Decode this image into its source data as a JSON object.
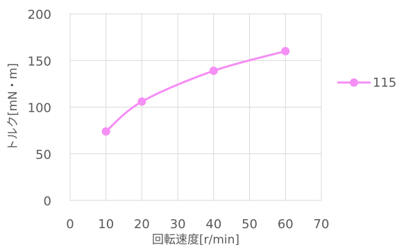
{
  "chart_data": {
    "type": "scatter",
    "xlabel": "回転速度[r/min]",
    "ylabel": "トルク[mN・m]",
    "xlim": [
      0,
      70
    ],
    "ylim": [
      0,
      200
    ],
    "xticks": [
      0,
      10,
      20,
      30,
      40,
      50,
      60,
      70
    ],
    "yticks": [
      0,
      50,
      100,
      150,
      200
    ],
    "grid": true,
    "smooth": true,
    "legend_position": "right",
    "series": [
      {
        "name": "115",
        "color": "#f58ef5",
        "marker": "circle",
        "x": [
          10,
          20,
          40,
          60
        ],
        "y": [
          74,
          106,
          139,
          160
        ]
      }
    ]
  }
}
